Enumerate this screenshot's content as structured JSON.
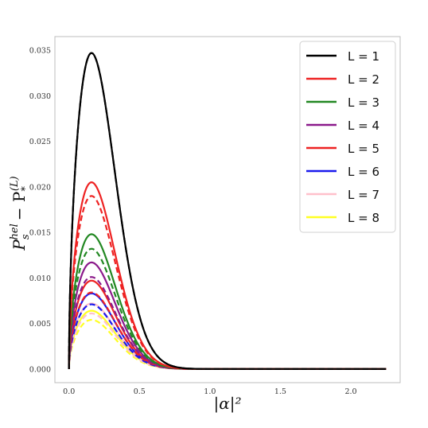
{
  "chart_data": {
    "type": "line",
    "title": "",
    "xlabel": "|α|²",
    "ylabel_main": "P",
    "ylabel_sub": "s",
    "ylabel_sup": "hel",
    "ylabel_minus": "− P",
    "ylabel_sub2": "*",
    "ylabel_sup2": "(L)",
    "xlim": [
      -0.1,
      2.35
    ],
    "ylim": [
      -0.0015,
      0.0365
    ],
    "xticks": [
      0.0,
      0.5,
      1.0,
      1.5,
      2.0
    ],
    "xtick_labels": [
      "0.0",
      "0.5",
      "1.0",
      "1.5",
      "2.0"
    ],
    "yticks": [
      0.0,
      0.005,
      0.01,
      0.015,
      0.02,
      0.025,
      0.03,
      0.035
    ],
    "ytick_labels": [
      "0.000",
      "0.005",
      "0.010",
      "0.015",
      "0.020",
      "0.025",
      "0.030",
      "0.035"
    ],
    "x_range": [
      0.0,
      2.25
    ],
    "grid": false,
    "legend_position": "top-right",
    "series": [
      {
        "name": "L = 1",
        "color": "#000000",
        "solid_peak": 0.0347,
        "dashed_peak": 0.0347,
        "peak_x": 0.16
      },
      {
        "name": "L = 2",
        "color": "#ee2222",
        "solid_peak": 0.0205,
        "dashed_peak": 0.019,
        "peak_x": 0.16
      },
      {
        "name": "L = 3",
        "color": "#228822",
        "solid_peak": 0.0148,
        "dashed_peak": 0.0132,
        "peak_x": 0.16
      },
      {
        "name": "L = 4",
        "color": "#8b1a8b",
        "solid_peak": 0.0117,
        "dashed_peak": 0.0101,
        "peak_x": 0.16
      },
      {
        "name": "L = 5",
        "color": "#ee2222",
        "solid_peak": 0.0097,
        "dashed_peak": 0.0084,
        "peak_x": 0.16
      },
      {
        "name": "L = 6",
        "color": "#1a1aee",
        "solid_peak": 0.0083,
        "dashed_peak": 0.0071,
        "peak_x": 0.16
      },
      {
        "name": "L = 7",
        "color": "#ffc0cb",
        "solid_peak": 0.0072,
        "dashed_peak": 0.0061,
        "peak_x": 0.16
      },
      {
        "name": "L = 8",
        "color": "#ffff22",
        "solid_peak": 0.0064,
        "dashed_peak": 0.0054,
        "peak_x": 0.16
      }
    ]
  }
}
